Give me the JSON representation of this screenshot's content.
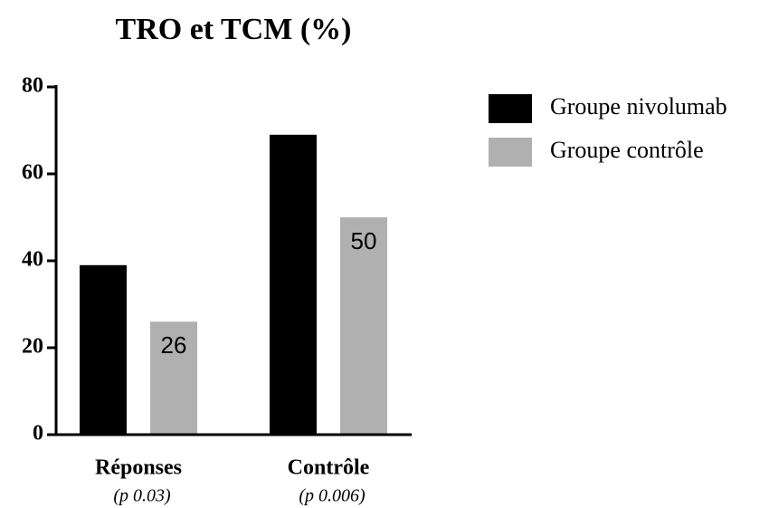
{
  "chart_data": {
    "type": "bar",
    "title": "TRO et TCM (%)",
    "categories": [
      "Réponses",
      "Contrôle"
    ],
    "category_notes": [
      "(p 0.03)",
      "(p 0.006)"
    ],
    "series": [
      {
        "name": "Groupe nivolumab",
        "color": "#000000",
        "values": [
          39,
          69
        ]
      },
      {
        "name": "Groupe contrôle",
        "color": "#b0b0b0",
        "values": [
          26,
          50
        ]
      }
    ],
    "ylim": [
      0,
      80
    ],
    "yticks": [
      0,
      20,
      40,
      60,
      80
    ],
    "grid": false,
    "legend": "right"
  }
}
